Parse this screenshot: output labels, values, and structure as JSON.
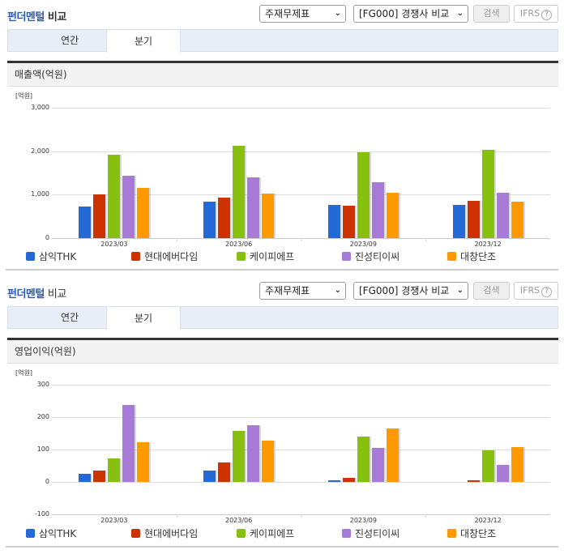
{
  "colors": {
    "삼익THK": "#2469d8",
    "현대에버다임": "#cc3300",
    "케이피에프": "#88c010",
    "진성티이씨": "#a87ad8",
    "대창단조": "#ff9900"
  },
  "sections": [
    {
      "title_blue": "펀더멘털",
      "title_dark": "비교",
      "select_statement": "주재무제표",
      "select_group": "[FG000] 경쟁사 비교",
      "search_button": "검색",
      "ifrs_button": "IFRS",
      "help_icon": "?",
      "tabs": [
        {
          "label": "연간",
          "active": false
        },
        {
          "label": "분기",
          "active": true
        }
      ],
      "metric_label": "매출액(억원)"
    },
    {
      "title_blue": "펀더멘털",
      "title_dark": "비교",
      "select_statement": "주재무제표",
      "select_group": "[FG000] 경쟁사 비교",
      "search_button": "검색",
      "ifrs_button": "IFRS",
      "help_icon": "?",
      "tabs": [
        {
          "label": "연간",
          "active": false
        },
        {
          "label": "분기",
          "active": true
        }
      ],
      "metric_label": "영업이익(억원)"
    }
  ],
  "chart_data": [
    {
      "type": "bar",
      "title": "매출액(억원)",
      "unit_label": "[억원]",
      "xlabel": "",
      "ylabel": "억원",
      "ylim": [
        0,
        3000
      ],
      "yticks": [
        "0",
        "1,000",
        "2,000",
        "3,000"
      ],
      "ytick_values": [
        0,
        1000,
        2000,
        3000
      ],
      "grid": true,
      "legend_position": "bottom",
      "categories": [
        "2023/03",
        "2023/06",
        "2023/09",
        "2023/12"
      ],
      "series": [
        {
          "name": "삼익THK",
          "values": [
            730,
            840,
            770,
            770
          ]
        },
        {
          "name": "현대에버다임",
          "values": [
            1000,
            930,
            750,
            860
          ]
        },
        {
          "name": "케이피에프",
          "values": [
            1920,
            2120,
            1970,
            2030
          ]
        },
        {
          "name": "진성티이씨",
          "values": [
            1440,
            1400,
            1290,
            1050
          ]
        },
        {
          "name": "대창단조",
          "values": [
            1160,
            1020,
            1050,
            830
          ]
        }
      ]
    },
    {
      "type": "bar",
      "title": "영업이익(억원)",
      "unit_label": "[억원]",
      "xlabel": "",
      "ylabel": "억원",
      "ylim": [
        -100,
        300
      ],
      "yticks": [
        "-100",
        "0",
        "100",
        "200",
        "300"
      ],
      "ytick_values": [
        -100,
        0,
        100,
        200,
        300
      ],
      "grid": true,
      "legend_position": "bottom",
      "categories": [
        "2023/03",
        "2023/06",
        "2023/09",
        "2023/12"
      ],
      "series": [
        {
          "name": "삼익THK",
          "values": [
            26,
            35,
            6,
            0
          ]
        },
        {
          "name": "현대에버다임",
          "values": [
            35,
            61,
            12,
            6
          ]
        },
        {
          "name": "케이피에프",
          "values": [
            73,
            158,
            139,
            97
          ]
        },
        {
          "name": "진성티이씨",
          "values": [
            238,
            175,
            106,
            52
          ]
        },
        {
          "name": "대창단조",
          "values": [
            123,
            128,
            166,
            107
          ]
        }
      ]
    }
  ]
}
